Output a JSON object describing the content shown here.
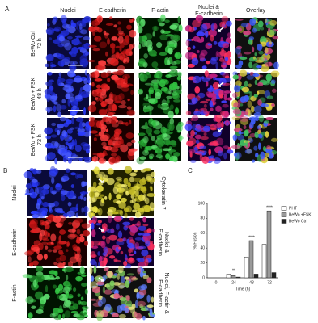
{
  "panel_a": {
    "label": "A",
    "columns": [
      [
        "Nuclei"
      ],
      [
        "E-cadherin"
      ],
      [
        "F-actin"
      ],
      [
        "Nuclei &",
        "E-cadherin"
      ],
      [
        "Overlay"
      ]
    ],
    "rows": [
      [
        "BeWo Ctrl",
        "72 h"
      ],
      [
        "BeWo + FSK",
        "48 h"
      ],
      [
        "BeWo + FSK",
        "72 h"
      ]
    ]
  },
  "panel_b": {
    "label": "B",
    "left_labels": [
      [
        "Nuclei"
      ],
      [
        "E-cadherin"
      ],
      [
        "F-actin"
      ]
    ],
    "right_labels": [
      [
        "Cytokeratin 7"
      ],
      [
        "Nuclei &",
        "E-cadherin"
      ],
      [
        "Nuclei, F-actin &",
        "E-cadherin"
      ]
    ]
  },
  "chart_data": {
    "type": "bar",
    "panel_label": "C",
    "x_label": "Time (h)",
    "y_label": "% Fusion",
    "categories": [
      "0",
      "24",
      "48",
      "72"
    ],
    "series": [
      {
        "name": "PHT",
        "color": "#ffffff",
        "values": [
          0,
          5,
          28,
          45
        ]
      },
      {
        "name": "BeWo +FSK",
        "color": "#9a9a9a",
        "values": [
          0,
          3,
          50,
          90
        ]
      },
      {
        "name": "BeWo Ctrl",
        "color": "#222222",
        "values": [
          0,
          1,
          5,
          7
        ]
      }
    ],
    "significance": [
      null,
      "**",
      "****",
      "****"
    ],
    "ylim": [
      0,
      100
    ],
    "yticks": [
      0,
      20,
      40,
      60,
      80,
      100
    ]
  }
}
